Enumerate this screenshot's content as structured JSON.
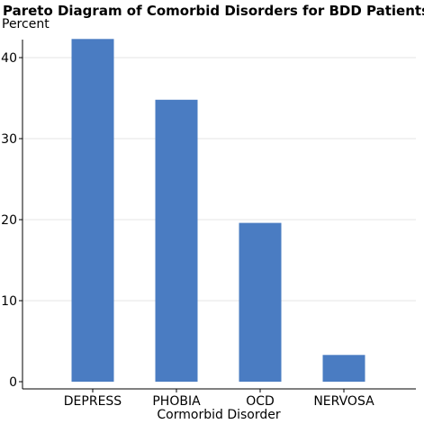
{
  "chart_data": {
    "type": "bar",
    "title": "Pareto Diagram of Comorbid Disorders for BDD Patients",
    "ylabel": "Percent",
    "xlabel": "Cormorbid Disorder",
    "categories": [
      "DEPRESS",
      "PHOBIA",
      "OCD",
      "NERVOSA"
    ],
    "values": [
      42.3,
      34.8,
      19.6,
      3.3
    ],
    "ylim": [
      0,
      45
    ],
    "yticks": [
      0,
      10,
      20,
      30,
      40
    ],
    "bar_color": "#4a7cc2",
    "grid": true,
    "legend": "none"
  }
}
